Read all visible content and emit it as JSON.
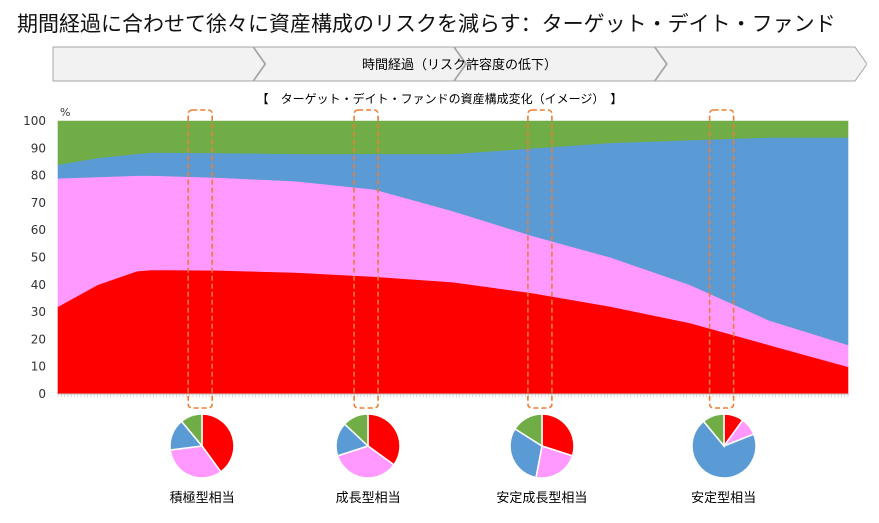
{
  "page_title": "期間経過に合わせて徐々に資産構成のリスクを減らす：ターゲット・デイト・ファンド",
  "timeline": {
    "label": "時間経過（リスク許容度の低下）",
    "stage_count": 4,
    "fill": "#f2f2f2",
    "stroke": "#a6a6a6"
  },
  "chart_data": {
    "type": "area",
    "stacked": true,
    "title": "【　ターゲット・デイト・ファンドの資産構成変化（イメージ）　】",
    "y_unit": "%",
    "ylim": [
      0,
      100
    ],
    "yticks": [
      0,
      10,
      20,
      30,
      40,
      50,
      60,
      70,
      80,
      90,
      100
    ],
    "xlim": [
      0,
      100
    ],
    "x": [
      0,
      5,
      10,
      12,
      20,
      30,
      40,
      50,
      60,
      70,
      80,
      90,
      100
    ],
    "series": [
      {
        "color": "#ff0000",
        "values": [
          32,
          40,
          45,
          45.5,
          45.3,
          44.5,
          43,
          41,
          37,
          32,
          26,
          18,
          10
        ]
      },
      {
        "color": "#ff99ff",
        "values": [
          47,
          39.5,
          35,
          34.5,
          34,
          33.5,
          32,
          26,
          21,
          18,
          14,
          9,
          8
        ]
      },
      {
        "color": "#5b9bd5",
        "values": [
          5,
          7,
          8,
          8.5,
          9,
          10,
          13,
          21,
          32,
          42,
          53,
          67,
          76
        ]
      },
      {
        "color": "#70ad47",
        "values": [
          16,
          13.5,
          12,
          11.5,
          11.7,
          12,
          12,
          12,
          10,
          8,
          7,
          6,
          6
        ]
      }
    ],
    "highlights": [
      {
        "x": 18,
        "label": "積極型相当"
      },
      {
        "x": 39,
        "label": "成長型相当"
      },
      {
        "x": 61,
        "label": "安定成長型相当"
      },
      {
        "x": 84,
        "label": "安定型相当"
      }
    ],
    "highlight_color": "#ed7d31",
    "pies": [
      {
        "label": "積極型相当",
        "values": [
          40,
          33,
          16,
          11
        ]
      },
      {
        "label": "成長型相当",
        "values": [
          35,
          35,
          17,
          13
        ]
      },
      {
        "label": "安定成長型相当",
        "values": [
          30,
          23,
          31,
          16
        ]
      },
      {
        "label": "安定型相当",
        "values": [
          10,
          9,
          70,
          11
        ]
      }
    ]
  }
}
